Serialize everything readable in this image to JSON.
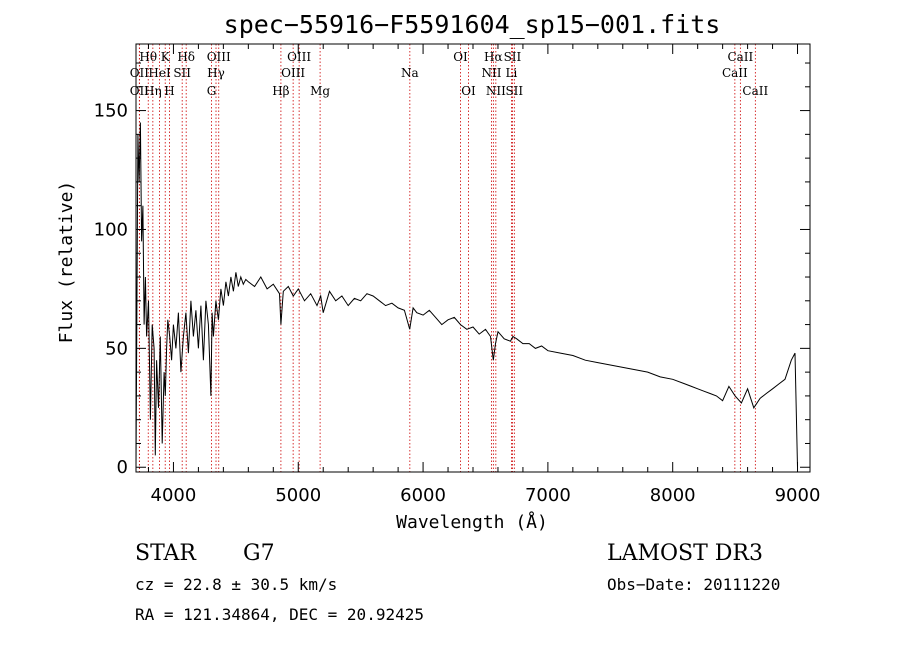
{
  "chart_data": {
    "type": "line",
    "title": "spec−55916−F5591604_sp15−001.fits",
    "xlabel": "Wavelength (Å)",
    "ylabel": "Flux (relative)",
    "xlim": [
      3700,
      9100
    ],
    "ylim": [
      -2,
      178
    ],
    "x_ticks": [
      4000,
      5000,
      6000,
      7000,
      8000,
      9000
    ],
    "y_ticks": [
      0,
      50,
      100,
      150
    ],
    "grid": false,
    "series": [
      {
        "name": "flux",
        "x": [
          3700,
          3715,
          3725,
          3735,
          3745,
          3755,
          3765,
          3775,
          3785,
          3800,
          3815,
          3830,
          3845,
          3855,
          3865,
          3880,
          3895,
          3910,
          3925,
          3935,
          3945,
          3955,
          3970,
          3985,
          4000,
          4020,
          4040,
          4060,
          4080,
          4100,
          4120,
          4140,
          4160,
          4180,
          4200,
          4220,
          4240,
          4260,
          4280,
          4300,
          4310,
          4320,
          4340,
          4360,
          4380,
          4400,
          4420,
          4440,
          4460,
          4480,
          4500,
          4520,
          4540,
          4560,
          4580,
          4600,
          4650,
          4700,
          4750,
          4800,
          4850,
          4861,
          4880,
          4920,
          4960,
          5000,
          5050,
          5100,
          5150,
          5180,
          5200,
          5250,
          5300,
          5350,
          5400,
          5450,
          5500,
          5550,
          5600,
          5650,
          5700,
          5750,
          5800,
          5850,
          5893,
          5920,
          5950,
          6000,
          6050,
          6100,
          6150,
          6200,
          6250,
          6300,
          6350,
          6400,
          6450,
          6500,
          6540,
          6563,
          6580,
          6600,
          6650,
          6700,
          6720,
          6750,
          6800,
          6850,
          6900,
          6950,
          7000,
          7100,
          7200,
          7300,
          7400,
          7500,
          7600,
          7700,
          7800,
          7900,
          8000,
          8100,
          8150,
          8200,
          8250,
          8300,
          8350,
          8400,
          8450,
          8500,
          8550,
          8600,
          8650,
          8700,
          8750,
          8800,
          8850,
          8900,
          8950,
          8980,
          9000
        ],
        "values": [
          0,
          140,
          120,
          145,
          95,
          110,
          60,
          80,
          55,
          70,
          20,
          60,
          50,
          5,
          45,
          25,
          55,
          10,
          40,
          30,
          50,
          62,
          55,
          45,
          60,
          50,
          65,
          40,
          55,
          65,
          48,
          70,
          55,
          66,
          50,
          68,
          45,
          70,
          60,
          30,
          65,
          55,
          70,
          62,
          75,
          68,
          78,
          72,
          80,
          74,
          82,
          76,
          80,
          77,
          79,
          78,
          76,
          80,
          75,
          77,
          73,
          60,
          74,
          76,
          72,
          75,
          70,
          73,
          68,
          72,
          65,
          74,
          70,
          72,
          68,
          71,
          70,
          73,
          72,
          70,
          68,
          69,
          67,
          66,
          58,
          67,
          65,
          64,
          66,
          63,
          60,
          62,
          63,
          60,
          58,
          59,
          56,
          58,
          55,
          45,
          52,
          57,
          54,
          53,
          55,
          54,
          52,
          52,
          50,
          51,
          49,
          48,
          47,
          45,
          44,
          43,
          42,
          41,
          40,
          38,
          37,
          35,
          34,
          33,
          32,
          31,
          30,
          28,
          34,
          30,
          27,
          33,
          25,
          29,
          31,
          33,
          35,
          37,
          45,
          48,
          0
        ]
      }
    ],
    "spectral_lines": [
      {
        "name": "OII",
        "wavelength": 3727,
        "row": 2
      },
      {
        "name": "OII",
        "wavelength": 3727,
        "row": 3
      },
      {
        "name": "Hθ",
        "wavelength": 3798,
        "row": 1
      },
      {
        "name": "Hη",
        "wavelength": 3835,
        "row": 3
      },
      {
        "name": "HeI",
        "wavelength": 3889,
        "row": 2
      },
      {
        "name": "K",
        "wavelength": 3934,
        "row": 1
      },
      {
        "name": "H",
        "wavelength": 3968,
        "row": 3
      },
      {
        "name": "SII",
        "wavelength": 4070,
        "row": 2
      },
      {
        "name": "Hδ",
        "wavelength": 4102,
        "row": 1
      },
      {
        "name": "OIII",
        "wavelength": 4363,
        "row": 1
      },
      {
        "name": "Hγ",
        "wavelength": 4341,
        "row": 2
      },
      {
        "name": "G",
        "wavelength": 4305,
        "row": 3
      },
      {
        "name": "Hβ",
        "wavelength": 4861,
        "row": 3
      },
      {
        "name": "OIII",
        "wavelength": 5007,
        "row": 1
      },
      {
        "name": "OIII",
        "wavelength": 4959,
        "row": 2
      },
      {
        "name": "Mg",
        "wavelength": 5175,
        "row": 3
      },
      {
        "name": "Na",
        "wavelength": 5894,
        "row": 2
      },
      {
        "name": "OI",
        "wavelength": 6300,
        "row": 1
      },
      {
        "name": "OI",
        "wavelength": 6364,
        "row": 3
      },
      {
        "name": "Hα",
        "wavelength": 6563,
        "row": 1
      },
      {
        "name": "NII",
        "wavelength": 6548,
        "row": 2
      },
      {
        "name": "NII",
        "wavelength": 6583,
        "row": 3
      },
      {
        "name": "SII",
        "wavelength": 6716,
        "row": 1
      },
      {
        "name": "Li",
        "wavelength": 6708,
        "row": 2
      },
      {
        "name": "SII",
        "wavelength": 6731,
        "row": 3
      },
      {
        "name": "CaII",
        "wavelength": 8542,
        "row": 1
      },
      {
        "name": "CaII",
        "wavelength": 8498,
        "row": 2
      },
      {
        "name": "CaII",
        "wavelength": 8662,
        "row": 3
      }
    ]
  },
  "info": {
    "class": "STAR",
    "subclass": "G7",
    "survey": "LAMOST DR3",
    "redshift": "cz = 22.8 ± 30.5 km/s",
    "obs_date": "Obs−Date: 20111220",
    "coords": "RA = 121.34864, DEC =  20.92425"
  },
  "colors": {
    "line": "#000000",
    "marker": "#cc0000",
    "axis": "#000000"
  }
}
